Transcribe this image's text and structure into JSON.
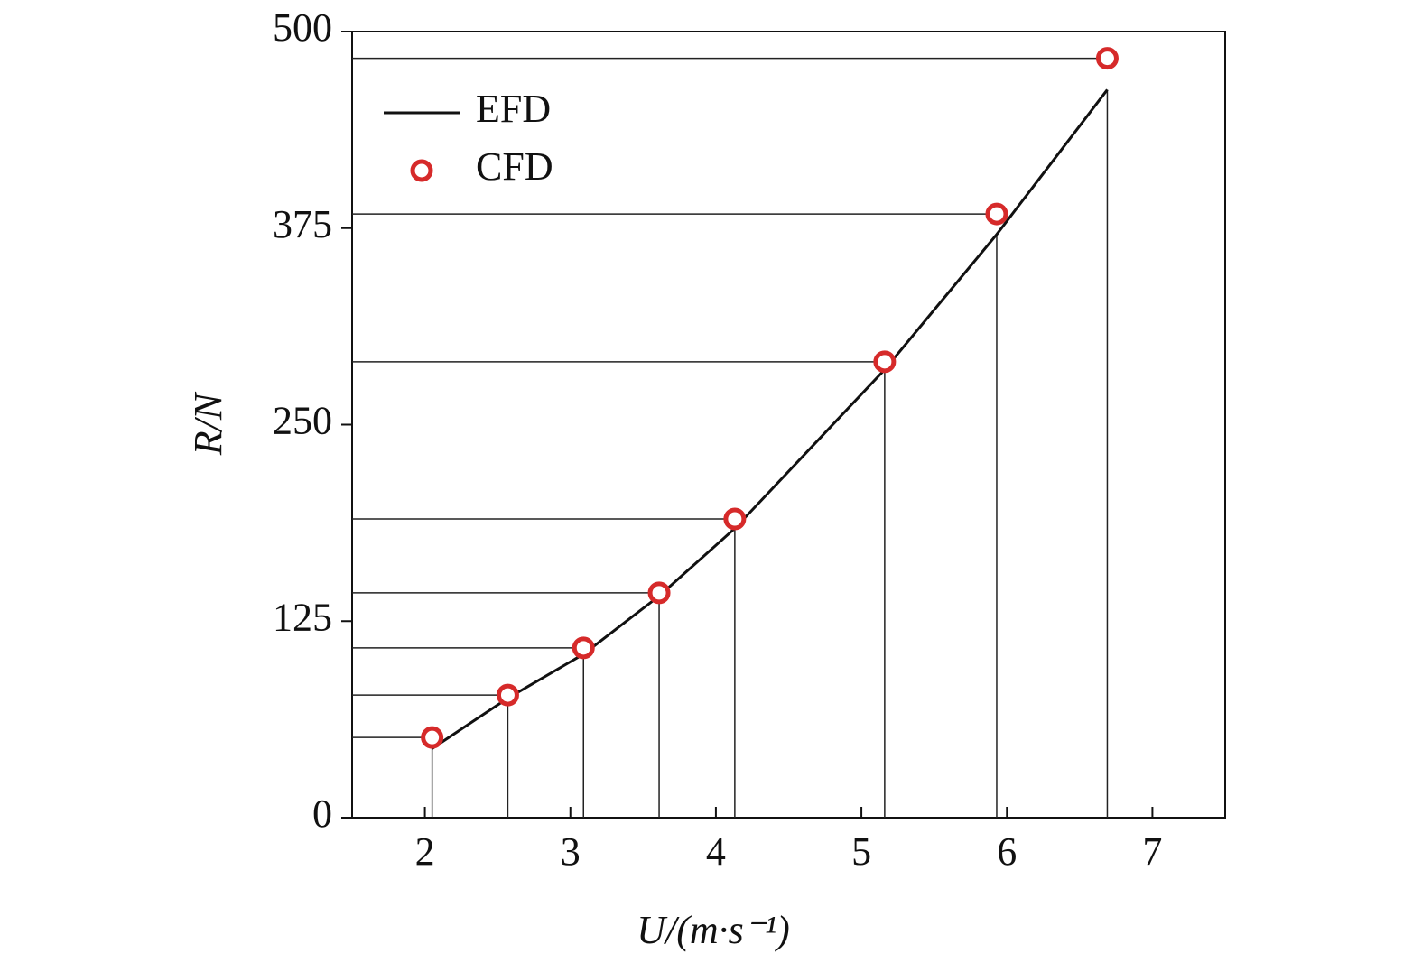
{
  "chart_data": {
    "type": "line",
    "xlabel": "U/(m·s⁻¹)",
    "ylabel": "R/N",
    "xlim": [
      1.5,
      7.5
    ],
    "xticks": [
      2,
      3,
      4,
      5,
      6,
      7
    ],
    "ylim": [
      0,
      500
    ],
    "yticks": [
      0,
      125,
      250,
      375,
      500
    ],
    "legend": "upper left",
    "series": [
      {
        "name": "EFD",
        "color": "#111111",
        "marker": "none",
        "x": [
          2.05,
          2.57,
          3.09,
          3.61,
          4.13,
          5.16,
          5.93,
          6.69
        ],
        "values": [
          44,
          76,
          104,
          141,
          184,
          285,
          371,
          463
        ]
      },
      {
        "name": "CFD",
        "color": "#d62a2a",
        "marker": "circle",
        "x": [
          2.05,
          2.57,
          3.09,
          3.61,
          4.13,
          5.16,
          5.93,
          6.69
        ],
        "values": [
          51,
          78,
          108,
          143,
          190,
          290,
          384,
          483
        ]
      }
    ]
  }
}
